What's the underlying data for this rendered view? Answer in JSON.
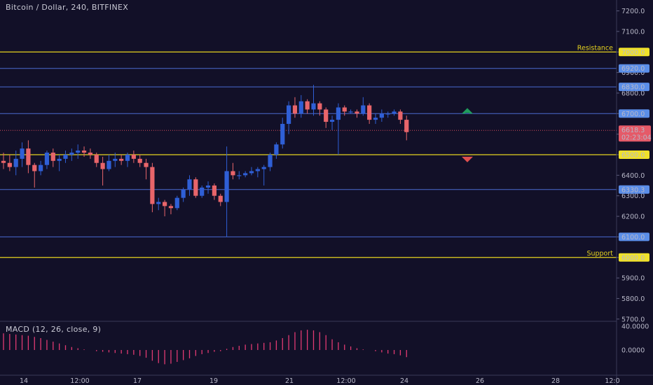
{
  "header": {
    "title": "Bitcoin / Dollar, 240, BITFINEX"
  },
  "macd": {
    "label": "MACD (12, 26, close, 9)"
  },
  "colors": {
    "background": "#121028",
    "up": "#2f5fd6",
    "down": "#e8656a",
    "level_yellow": "#e6d31e",
    "level_blue": "#4a6ad0",
    "macd_hist": "#e13a72"
  },
  "price_axis": {
    "ticks": [
      "7200.0",
      "7100.0",
      "7000.0",
      "6900.0",
      "6800.0",
      "6700.0",
      "6600.0",
      "6500.0",
      "6400.0",
      "6300.0",
      "6200.0",
      "6100.0",
      "6000.0",
      "5900.0",
      "5800.0",
      "5700.0"
    ]
  },
  "macd_axis": {
    "ticks": [
      "40.0000",
      "0.0000"
    ]
  },
  "time_axis": {
    "ticks": [
      "14",
      "12:00",
      "17",
      "19",
      "21",
      "12:00",
      "24",
      "26",
      "28",
      "12:0"
    ]
  },
  "chart_data": {
    "type": "candlestick",
    "title": "Bitcoin / Dollar, 240, BITFINEX",
    "ylim": [
      5700,
      7250
    ],
    "grid": false,
    "levels": [
      {
        "price": 7000,
        "label": "Resistance",
        "tag": "7000.0",
        "color": "#e6d31e"
      },
      {
        "price": 6920,
        "tag": "6920.0",
        "color": "#4a6ad0"
      },
      {
        "price": 6830,
        "tag": "6830.0",
        "color": "#4a6ad0"
      },
      {
        "price": 6700,
        "tag": "6700.0",
        "color": "#4a6ad0"
      },
      {
        "price": 6500,
        "tag": "6500.0",
        "color": "#e6d31e"
      },
      {
        "price": 6330.3,
        "tag": "6330.3",
        "color": "#4a6ad0"
      },
      {
        "price": 6100,
        "tag": "6100.0",
        "color": "#4a6ad0"
      },
      {
        "price": 6000,
        "label": "Support",
        "tag": "6000.0",
        "color": "#e6d31e"
      }
    ],
    "current": {
      "price": 6618.3,
      "tag": "6618.3",
      "countdown": "02:23:04"
    },
    "arrows": [
      {
        "direction": "up",
        "price": 6710
      },
      {
        "direction": "down",
        "price": 6480
      }
    ],
    "candles": [
      [
        6470,
        6510,
        6430,
        6460
      ],
      [
        6460,
        6500,
        6420,
        6440
      ],
      [
        6440,
        6520,
        6400,
        6480
      ],
      [
        6480,
        6560,
        6440,
        6530
      ],
      [
        6530,
        6570,
        6410,
        6450
      ],
      [
        6450,
        6460,
        6340,
        6420
      ],
      [
        6420,
        6470,
        6400,
        6450
      ],
      [
        6450,
        6520,
        6430,
        6510
      ],
      [
        6510,
        6530,
        6440,
        6470
      ],
      [
        6470,
        6500,
        6420,
        6480
      ],
      [
        6480,
        6520,
        6460,
        6500
      ],
      [
        6500,
        6530,
        6470,
        6510
      ],
      [
        6510,
        6550,
        6480,
        6520
      ],
      [
        6520,
        6540,
        6490,
        6510
      ],
      [
        6510,
        6530,
        6480,
        6500
      ],
      [
        6500,
        6510,
        6440,
        6460
      ],
      [
        6460,
        6490,
        6350,
        6430
      ],
      [
        6430,
        6500,
        6420,
        6470
      ],
      [
        6470,
        6510,
        6440,
        6480
      ],
      [
        6480,
        6500,
        6450,
        6470
      ],
      [
        6470,
        6510,
        6440,
        6500
      ],
      [
        6500,
        6520,
        6460,
        6480
      ],
      [
        6480,
        6500,
        6440,
        6460
      ],
      [
        6460,
        6480,
        6380,
        6440
      ],
      [
        6440,
        6460,
        6220,
        6260
      ],
      [
        6260,
        6290,
        6230,
        6270
      ],
      [
        6270,
        6280,
        6200,
        6250
      ],
      [
        6250,
        6260,
        6210,
        6240
      ],
      [
        6240,
        6300,
        6230,
        6290
      ],
      [
        6290,
        6340,
        6270,
        6330
      ],
      [
        6330,
        6400,
        6300,
        6380
      ],
      [
        6380,
        6390,
        6290,
        6300
      ],
      [
        6300,
        6350,
        6290,
        6340
      ],
      [
        6340,
        6370,
        6310,
        6350
      ],
      [
        6350,
        6360,
        6280,
        6300
      ],
      [
        6300,
        6310,
        6250,
        6270
      ],
      [
        6270,
        6540,
        6100,
        6420
      ],
      [
        6420,
        6460,
        6380,
        6400
      ],
      [
        6400,
        6420,
        6380,
        6400
      ],
      [
        6400,
        6420,
        6390,
        6410
      ],
      [
        6410,
        6440,
        6400,
        6420
      ],
      [
        6420,
        6440,
        6390,
        6430
      ],
      [
        6430,
        6450,
        6350,
        6440
      ],
      [
        6440,
        6510,
        6420,
        6500
      ],
      [
        6500,
        6560,
        6480,
        6550
      ],
      [
        6550,
        6680,
        6530,
        6650
      ],
      [
        6650,
        6760,
        6600,
        6740
      ],
      [
        6740,
        6780,
        6680,
        6700
      ],
      [
        6700,
        6790,
        6680,
        6760
      ],
      [
        6760,
        6770,
        6700,
        6720
      ],
      [
        6720,
        6840,
        6690,
        6750
      ],
      [
        6750,
        6760,
        6690,
        6720
      ],
      [
        6720,
        6730,
        6630,
        6660
      ],
      [
        6660,
        6690,
        6620,
        6670
      ],
      [
        6670,
        6750,
        6500,
        6730
      ],
      [
        6730,
        6740,
        6690,
        6710
      ],
      [
        6710,
        6720,
        6700,
        6710
      ],
      [
        6710,
        6720,
        6680,
        6700
      ],
      [
        6700,
        6780,
        6690,
        6740
      ],
      [
        6740,
        6750,
        6650,
        6670
      ],
      [
        6670,
        6700,
        6650,
        6680
      ],
      [
        6680,
        6720,
        6660,
        6700
      ],
      [
        6700,
        6710,
        6680,
        6700
      ],
      [
        6700,
        6720,
        6690,
        6710
      ],
      [
        6710,
        6720,
        6650,
        6670
      ],
      [
        6670,
        6690,
        6570,
        6610
      ]
    ],
    "macd_hist": [
      28,
      27,
      26,
      25,
      24,
      22,
      20,
      17,
      14,
      11,
      8,
      5,
      3,
      1,
      0,
      -2,
      -3,
      -4,
      -5,
      -6,
      -7,
      -8,
      -10,
      -13,
      -18,
      -22,
      -24,
      -23,
      -20,
      -17,
      -14,
      -10,
      -7,
      -5,
      -3,
      -2,
      2,
      5,
      7,
      9,
      10,
      11,
      12,
      13,
      16,
      20,
      25,
      30,
      33,
      34,
      33,
      30,
      25,
      18,
      13,
      9,
      6,
      3,
      1,
      0,
      -2,
      -4,
      -6,
      -7,
      -9,
      -12
    ]
  }
}
